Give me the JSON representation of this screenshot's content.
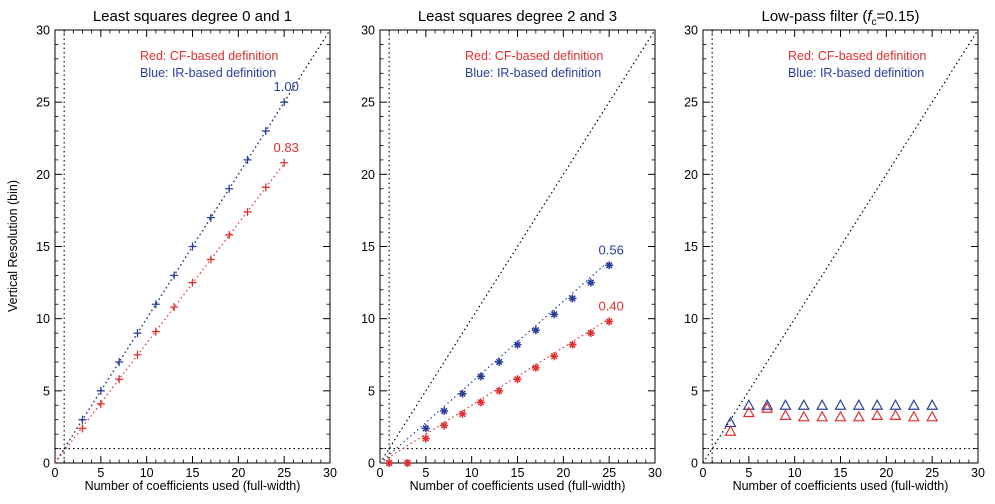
{
  "figure": {
    "ylabel": "Vertical Resolution (bin)",
    "xlabel": "Number of coefficients used (full-width)"
  },
  "colors": {
    "red": "#e03030",
    "blue": "#2a3f9a",
    "axis": "#000000"
  },
  "chart_data": [
    {
      "type": "scatter",
      "title_parts": [
        "Least squares degree 0 and 1"
      ],
      "xlabel": "Number of coefficients used (full-width)",
      "ylabel": "Vertical Resolution (bin)",
      "xlim": [
        0,
        30
      ],
      "ylim": [
        0,
        30
      ],
      "xticks": [
        0,
        5,
        10,
        15,
        20,
        25,
        30
      ],
      "yticks": [
        0,
        5,
        10,
        15,
        20,
        25,
        30
      ],
      "legend": [
        "Red: CF-based definition",
        "Blue: IR-based definition"
      ],
      "marker": "plus",
      "series": [
        {
          "color": "blue",
          "x": [
            3,
            5,
            7,
            9,
            11,
            13,
            15,
            17,
            19,
            21,
            23,
            25
          ],
          "y": [
            3,
            5,
            7,
            9,
            11,
            13,
            15,
            17,
            19,
            21,
            23,
            25
          ],
          "slope_label": "1.00",
          "fit_slope": 1.0,
          "fit_x": [
            0,
            25
          ]
        },
        {
          "color": "red",
          "x": [
            3,
            5,
            7,
            9,
            11,
            13,
            15,
            17,
            19,
            21,
            23,
            25
          ],
          "y": [
            2.4,
            4.1,
            5.8,
            7.5,
            9.1,
            10.8,
            12.5,
            14.1,
            15.8,
            17.4,
            19.1,
            20.8
          ],
          "slope_label": "0.83",
          "fit_slope": 0.83,
          "fit_x": [
            0,
            25
          ]
        }
      ],
      "reference_lines": {
        "identity": true,
        "y": 1,
        "x": 1
      }
    },
    {
      "type": "scatter",
      "title_parts": [
        "Least squares degree 2 and 3"
      ],
      "xlabel": "Number of coefficients used (full-width)",
      "ylabel": "",
      "xlim": [
        0,
        30
      ],
      "ylim": [
        0,
        30
      ],
      "xticks": [
        0,
        5,
        10,
        15,
        20,
        25,
        30
      ],
      "yticks": [
        0,
        5,
        10,
        15,
        20,
        25,
        30
      ],
      "legend": [
        "Red: CF-based definition",
        "Blue: IR-based definition"
      ],
      "marker": "asterisk",
      "series": [
        {
          "color": "blue",
          "x": [
            1,
            3,
            5,
            7,
            9,
            11,
            13,
            15,
            17,
            19,
            21,
            23,
            25
          ],
          "y": [
            0,
            0,
            2.4,
            3.6,
            4.8,
            6.0,
            7.0,
            8.2,
            9.2,
            10.3,
            11.4,
            12.5,
            13.7
          ],
          "slope_label": "0.56",
          "fit_slope": 0.56,
          "fit_x": [
            0,
            25
          ]
        },
        {
          "color": "red",
          "x": [
            1,
            3,
            5,
            7,
            9,
            11,
            13,
            15,
            17,
            19,
            21,
            23,
            25
          ],
          "y": [
            0,
            0,
            1.7,
            2.6,
            3.4,
            4.2,
            5.0,
            5.8,
            6.6,
            7.4,
            8.2,
            9.0,
            9.8
          ],
          "slope_label": "0.40",
          "fit_slope": 0.4,
          "fit_x": [
            0,
            25
          ]
        }
      ],
      "reference_lines": {
        "identity": true,
        "y": 1,
        "x": 1
      }
    },
    {
      "type": "scatter",
      "title_parts": [
        "Low-pass filter (",
        "f",
        "c",
        "=0.15)"
      ],
      "xlabel": "Number of coefficients used (full-width)",
      "ylabel": "",
      "xlim": [
        0,
        30
      ],
      "ylim": [
        0,
        30
      ],
      "xticks": [
        0,
        5,
        10,
        15,
        20,
        25,
        30
      ],
      "yticks": [
        0,
        5,
        10,
        15,
        20,
        25,
        30
      ],
      "legend": [
        "Red: CF-based definition",
        "Blue: IR-based definition"
      ],
      "marker": "triangle",
      "series": [
        {
          "color": "blue",
          "x": [
            3,
            5,
            7,
            9,
            11,
            13,
            15,
            17,
            19,
            21,
            23,
            25
          ],
          "y": [
            2.8,
            4.0,
            4.0,
            4.0,
            4.0,
            4.0,
            4.0,
            4.0,
            4.0,
            4.0,
            4.0,
            4.0
          ]
        },
        {
          "color": "red",
          "x": [
            3,
            5,
            7,
            9,
            11,
            13,
            15,
            17,
            19,
            21,
            23,
            25
          ],
          "y": [
            2.2,
            3.5,
            3.8,
            3.3,
            3.2,
            3.2,
            3.2,
            3.2,
            3.3,
            3.3,
            3.2,
            3.2
          ]
        }
      ],
      "reference_lines": {
        "identity": true,
        "y": 1,
        "x": 1
      }
    }
  ]
}
